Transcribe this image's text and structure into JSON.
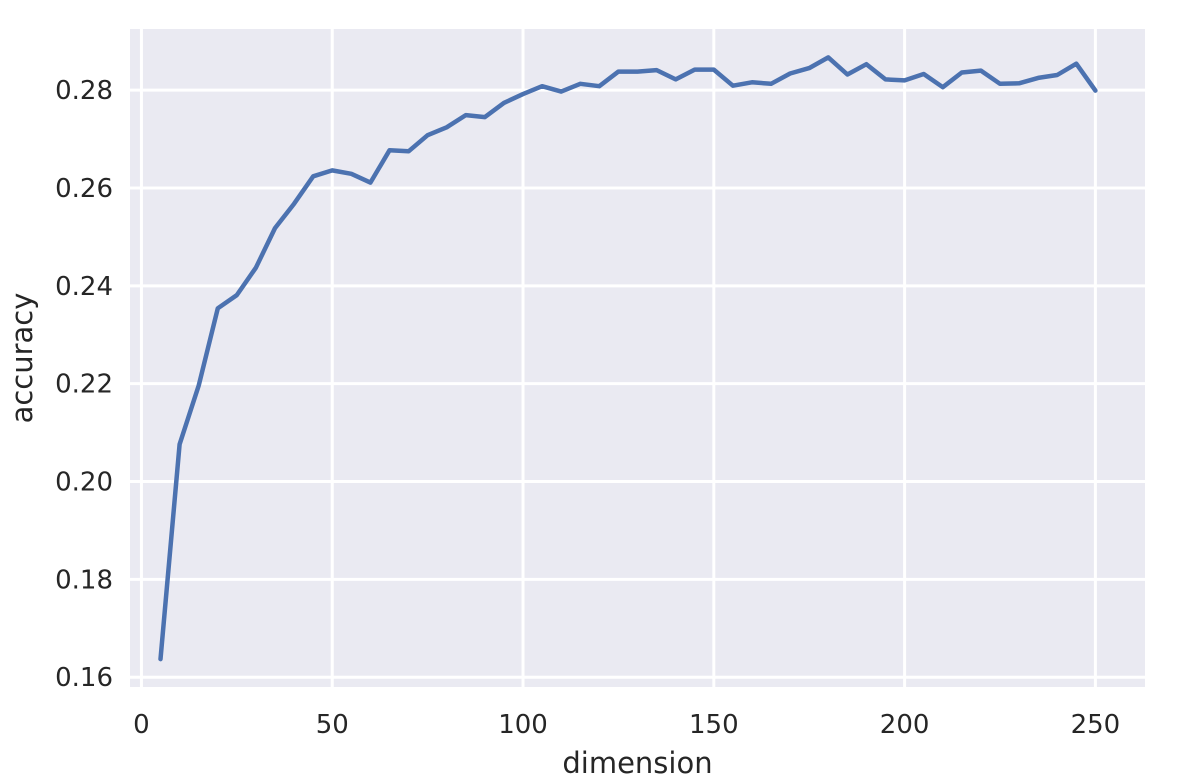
{
  "chart_data": {
    "type": "line",
    "title": "",
    "xlabel": "dimension",
    "ylabel": "accuracy",
    "xlim": [
      -3,
      263
    ],
    "ylim": [
      0.158,
      0.2925
    ],
    "xticks": [
      0,
      50,
      100,
      150,
      200,
      250
    ],
    "xtick_labels": [
      "0",
      "50",
      "100",
      "150",
      "200",
      "250"
    ],
    "yticks": [
      0.16,
      0.18,
      0.2,
      0.22,
      0.24,
      0.26,
      0.28
    ],
    "ytick_labels": [
      "0.16",
      "0.18",
      "0.20",
      "0.22",
      "0.24",
      "0.26",
      "0.28"
    ],
    "grid": true,
    "legend": "none",
    "colors": {
      "line": "#4c72b0",
      "background": "#eaeaf2",
      "grid": "#ffffff"
    },
    "series": [
      {
        "x": [
          5,
          10,
          15,
          20,
          25,
          30,
          35,
          40,
          45,
          50,
          55,
          60,
          65,
          70,
          75,
          80,
          85,
          90,
          95,
          100,
          105,
          110,
          115,
          120,
          125,
          130,
          135,
          140,
          145,
          150,
          155,
          160,
          165,
          170,
          175,
          180,
          185,
          190,
          195,
          200,
          205,
          210,
          215,
          220,
          225,
          230,
          235,
          240,
          245,
          250
        ],
        "y": [
          0.1637,
          0.2076,
          0.2196,
          0.2354,
          0.2381,
          0.2437,
          0.2518,
          0.2568,
          0.2624,
          0.2636,
          0.2629,
          0.2611,
          0.2677,
          0.2675,
          0.2708,
          0.2724,
          0.2749,
          0.2745,
          0.2774,
          0.2792,
          0.2808,
          0.2797,
          0.2813,
          0.2808,
          0.2838,
          0.2838,
          0.2841,
          0.2822,
          0.2842,
          0.2842,
          0.2809,
          0.2816,
          0.2813,
          0.2834,
          0.2845,
          0.2867,
          0.2832,
          0.2853,
          0.2822,
          0.282,
          0.2833,
          0.2806,
          0.2836,
          0.284,
          0.2813,
          0.2814,
          0.2825,
          0.2831,
          0.2854,
          0.2799
        ]
      }
    ]
  }
}
